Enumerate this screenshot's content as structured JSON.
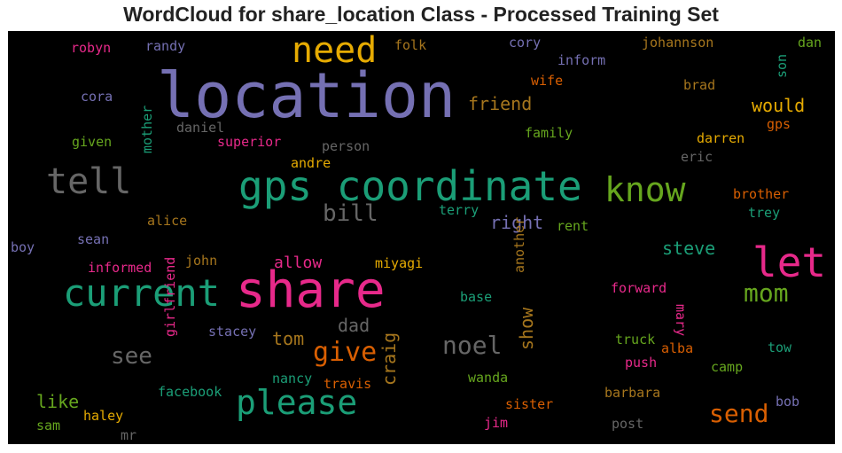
{
  "title": "WordCloud for share_location Class - Processed Training Set",
  "words": {
    "location": "location",
    "gps_coordinate": "gps coordinate",
    "share": "share",
    "current": "current",
    "tell": "tell",
    "know": "know",
    "let": "let",
    "need": "need",
    "please": "please",
    "send": "send",
    "give": "give",
    "mom": "mom",
    "noel": "noel",
    "bill": "bill",
    "see": "see",
    "friend": "friend",
    "would": "would",
    "right": "right",
    "allow": "allow",
    "steve": "steve",
    "tom": "tom",
    "dad": "dad",
    "show": "show",
    "craig": "craig",
    "like": "like",
    "robyn": "robyn",
    "randy": "randy",
    "folk": "folk",
    "cory": "cory",
    "johannson": "johannson",
    "dan": "dan",
    "inform": "inform",
    "wife": "wife",
    "brad": "brad",
    "son": "son",
    "cora": "cora",
    "daniel": "daniel",
    "given": "given",
    "superior": "superior",
    "person": "person",
    "family": "family",
    "gps": "gps",
    "darren": "darren",
    "andre": "andre",
    "eric": "eric",
    "mother": "mother",
    "alice": "alice",
    "terry": "terry",
    "rent": "rent",
    "brother": "brother",
    "trey": "trey",
    "boy": "boy",
    "sean": "sean",
    "informed": "informed",
    "john": "john",
    "miyagi": "miyagi",
    "another": "another",
    "base": "base",
    "forward": "forward",
    "mary": "mary",
    "stacey": "stacey",
    "girlfriend": "girlfriend",
    "truck": "truck",
    "alba": "alba",
    "tow": "tow",
    "push": "push",
    "camp": "camp",
    "nancy": "nancy",
    "travis": "travis",
    "wanda": "wanda",
    "barbara": "barbara",
    "bob": "bob",
    "haley": "haley",
    "facebook": "facebook",
    "sister": "sister",
    "sam": "sam",
    "mr": "mr",
    "jim": "jim",
    "post": "post"
  },
  "palette": {
    "purple": "#7570b3",
    "teal": "#1b9e77",
    "pink": "#e7298a",
    "orange": "#d95f02",
    "green": "#66a61e",
    "gold": "#e6ab02",
    "brown": "#a6761d",
    "gray": "#666666"
  }
}
